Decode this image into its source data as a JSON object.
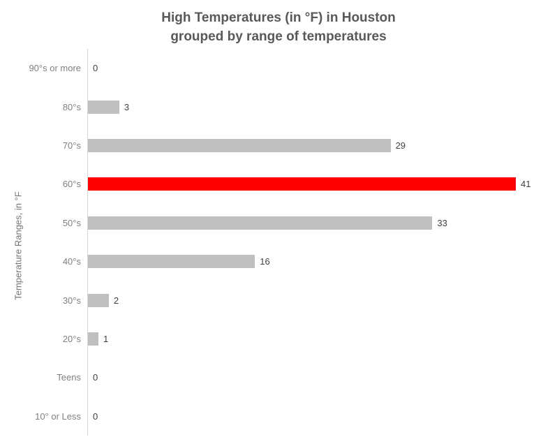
{
  "chart_data": {
    "type": "bar",
    "orientation": "horizontal",
    "title_line1": "High Temperatures (in °F) in Houston",
    "title_line2": "grouped by range of temperatures",
    "ylabel": "Temperature Ranges, in °F",
    "xlabel": "",
    "categories": [
      "90°s or more",
      "80°s",
      "70°s",
      "60°s",
      "50°s",
      "40°s",
      "30°s",
      "20°s",
      "Teens",
      "10° or Less"
    ],
    "values": [
      0,
      3,
      29,
      41,
      33,
      16,
      2,
      1,
      0,
      0
    ],
    "data_labels": [
      "0",
      "3",
      "29",
      "41",
      "33",
      "16",
      "2",
      "1",
      "0",
      "0"
    ],
    "xlim": [
      0,
      41
    ],
    "grid": "off",
    "legend": "none",
    "bar_color": "#bfbfbf",
    "highlight_color": "#ff0000",
    "highlight_index": 3,
    "highlight_category": "60°s",
    "axis_line_color": "#d9d9d9",
    "title_color": "#595959",
    "category_label_color": "#7f7f7f",
    "value_label_color": "#404040"
  }
}
